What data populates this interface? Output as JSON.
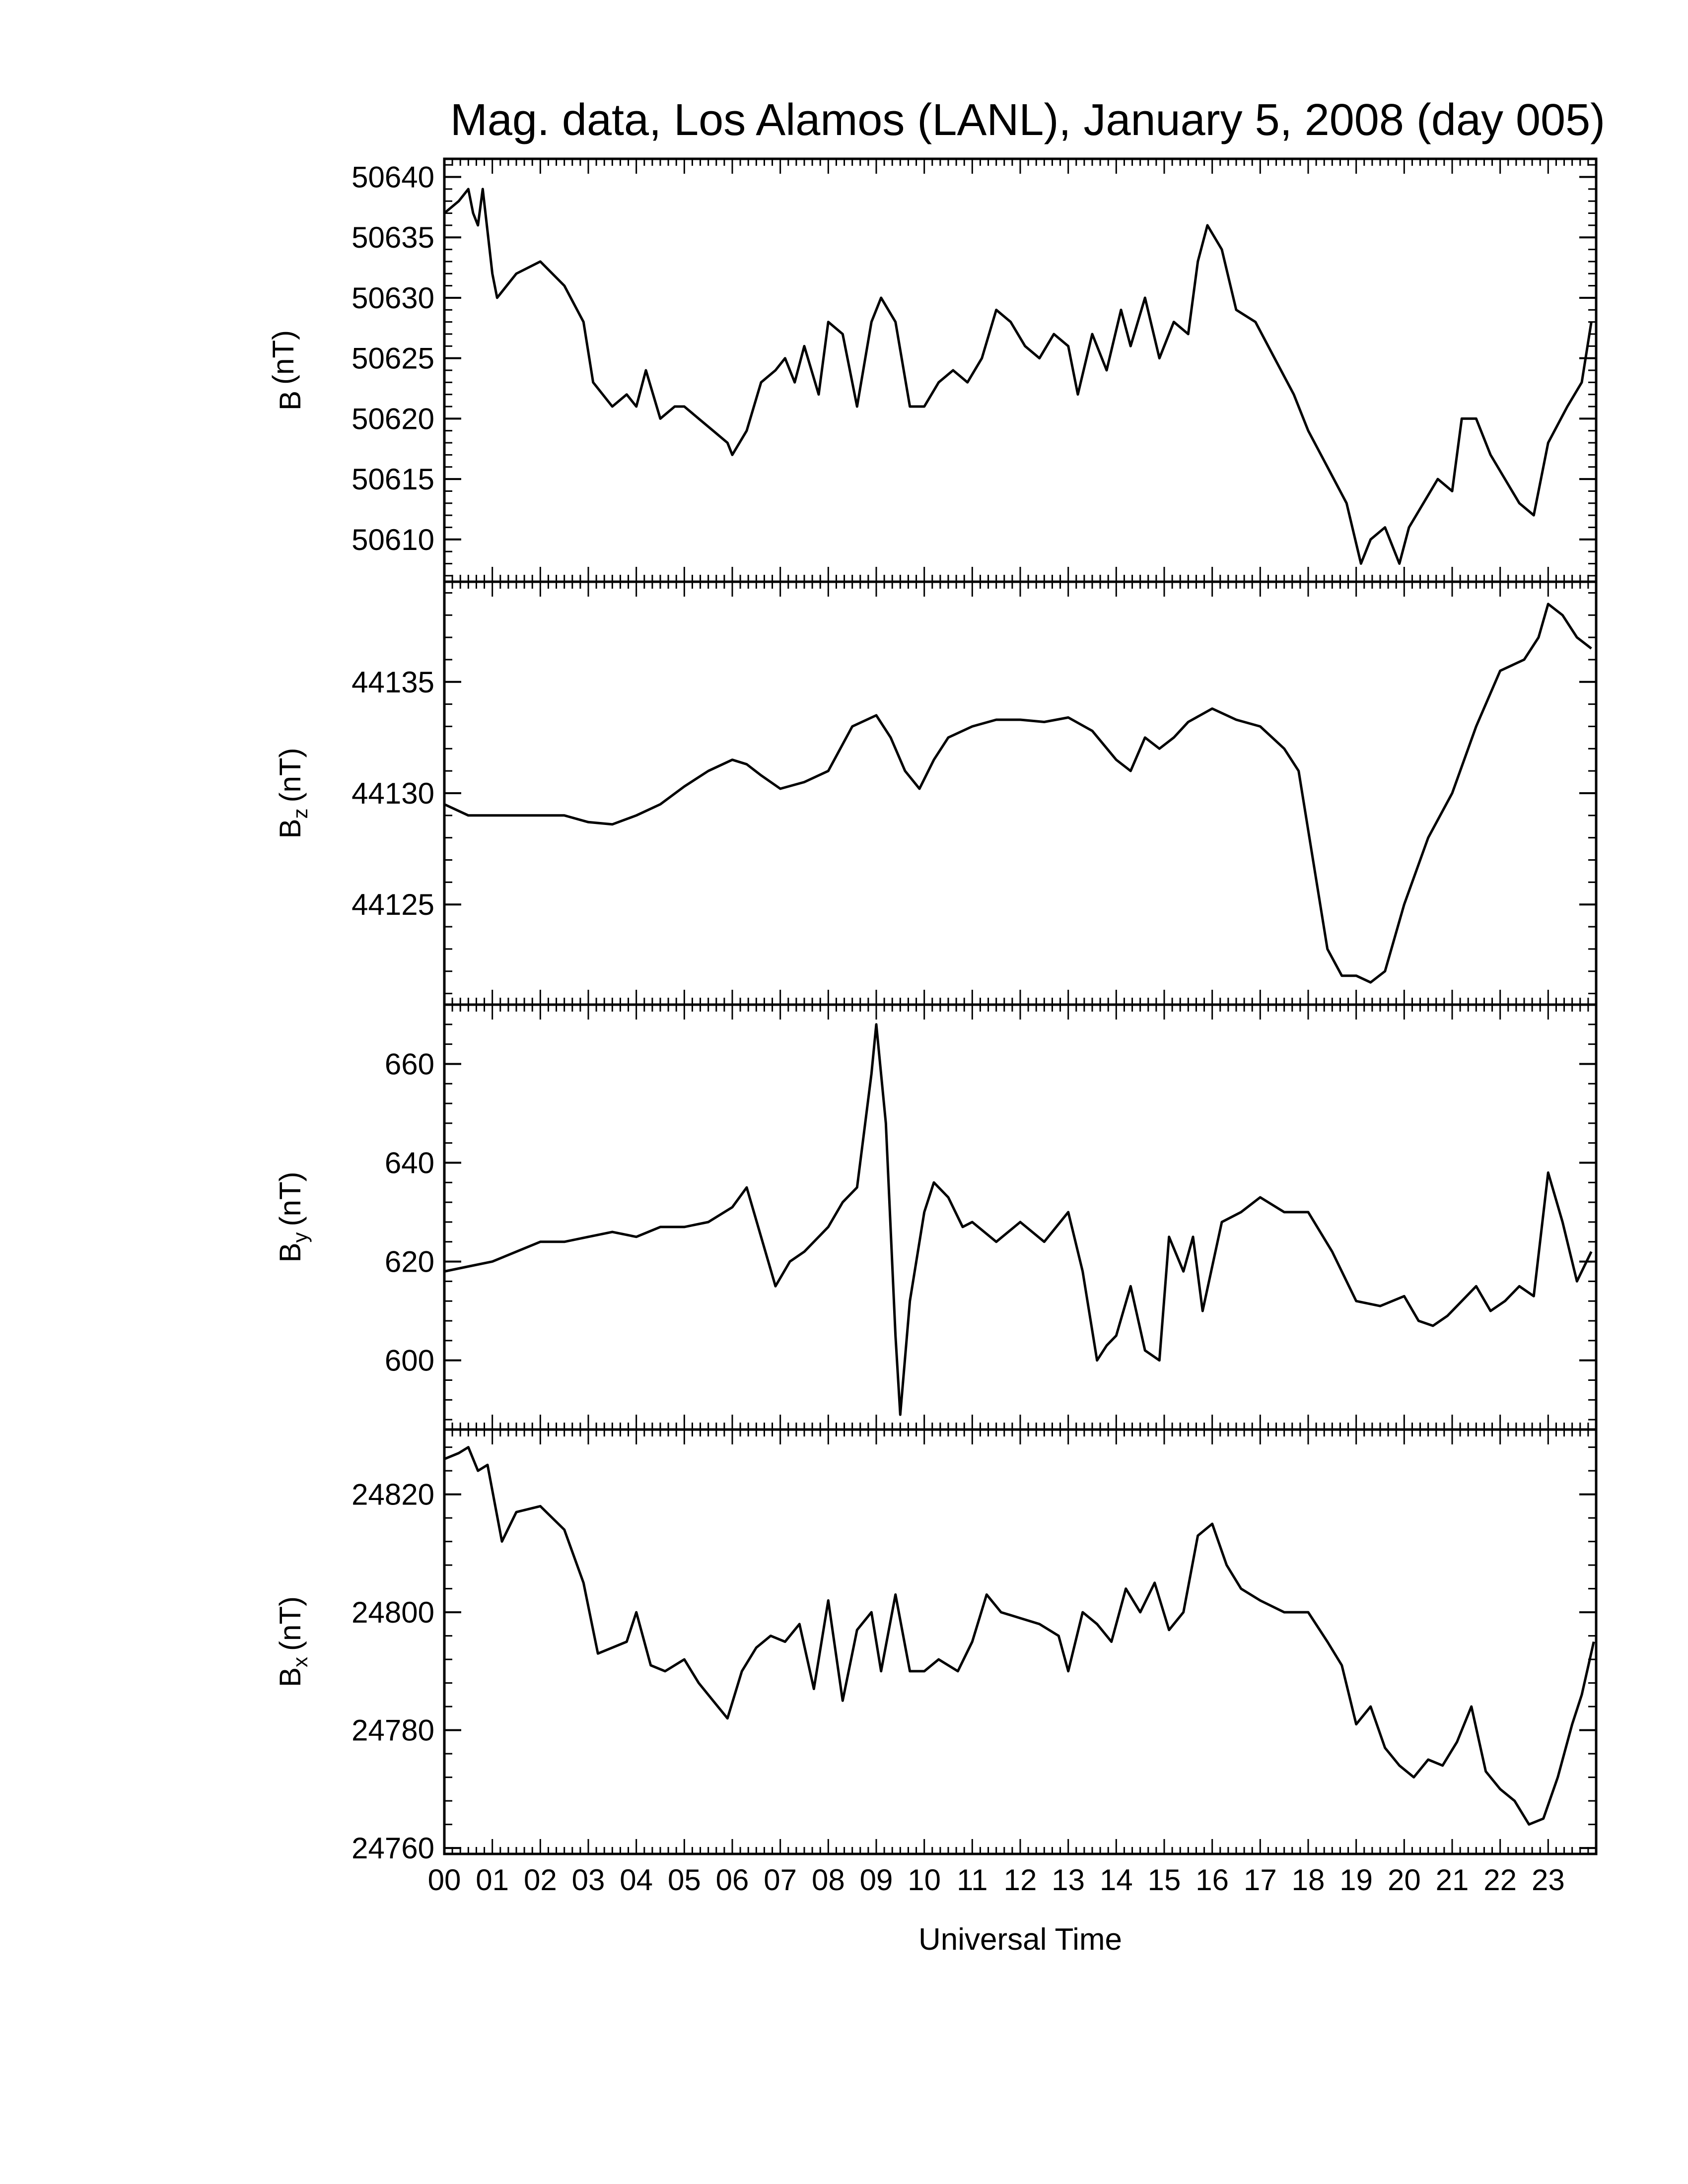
{
  "title": "Mag. data, Los Alamos (LANL), January 5, 2008 (day 005)",
  "xlabel": "Universal Time",
  "hour_labels": [
    "00",
    "01",
    "02",
    "03",
    "04",
    "05",
    "06",
    "07",
    "08",
    "09",
    "10",
    "11",
    "12",
    "13",
    "14",
    "15",
    "16",
    "17",
    "18",
    "19",
    "20",
    "21",
    "22",
    "23"
  ],
  "colors": {
    "line": "#000000",
    "axes": "#000000",
    "background": "#ffffff"
  },
  "chart_data": [
    {
      "type": "line",
      "ylabel_main": "B",
      "ylabel_sub": "",
      "ylabel_unit": "(nT)",
      "xlim": [
        0,
        24
      ],
      "ylim": [
        50606.5,
        50641.5
      ],
      "yticks": [
        50610,
        50615,
        50620,
        50625,
        50630,
        50635,
        50640
      ],
      "ytick_labels": [
        "50610",
        "50615",
        "50620",
        "50625",
        "50630",
        "50635",
        "50640"
      ],
      "x": [
        0.0,
        0.3,
        0.5,
        0.6,
        0.7,
        0.8,
        1.0,
        1.1,
        1.5,
        2.0,
        2.5,
        2.9,
        3.1,
        3.5,
        3.8,
        4.0,
        4.2,
        4.5,
        4.8,
        5.0,
        5.3,
        5.6,
        5.9,
        6.0,
        6.3,
        6.6,
        6.9,
        7.1,
        7.3,
        7.5,
        7.8,
        8.0,
        8.3,
        8.6,
        8.9,
        9.1,
        9.4,
        9.7,
        10.0,
        10.3,
        10.6,
        10.9,
        11.2,
        11.5,
        11.8,
        12.1,
        12.4,
        12.7,
        13.0,
        13.2,
        13.5,
        13.8,
        14.1,
        14.3,
        14.6,
        14.9,
        15.2,
        15.5,
        15.7,
        15.9,
        16.2,
        16.5,
        16.9,
        17.3,
        17.7,
        18.0,
        18.4,
        18.8,
        19.1,
        19.3,
        19.6,
        19.9,
        20.1,
        20.4,
        20.7,
        21.0,
        21.2,
        21.5,
        21.8,
        22.1,
        22.4,
        22.7,
        23.0,
        23.4,
        23.7,
        23.9
      ],
      "y": [
        50637,
        50638,
        50639,
        50637,
        50636,
        50639,
        50632,
        50630,
        50632,
        50633,
        50631,
        50628,
        50623,
        50621,
        50622,
        50621,
        50624,
        50620,
        50621,
        50621,
        50620,
        50619,
        50618,
        50617,
        50619,
        50623,
        50624,
        50625,
        50623,
        50626,
        50622,
        50628,
        50627,
        50621,
        50628,
        50630,
        50628,
        50621,
        50621,
        50623,
        50624,
        50623,
        50625,
        50629,
        50628,
        50626,
        50625,
        50627,
        50626,
        50622,
        50627,
        50624,
        50629,
        50626,
        50630,
        50625,
        50628,
        50627,
        50633,
        50636,
        50634,
        50629,
        50628,
        50625,
        50622,
        50619,
        50616,
        50613,
        50608,
        50610,
        50611,
        50608,
        50611,
        50613,
        50615,
        50614,
        50620,
        50620,
        50617,
        50615,
        50613,
        50612,
        50618,
        50621,
        50623,
        50628
      ]
    },
    {
      "type": "line",
      "ylabel_main": "B",
      "ylabel_sub": "z",
      "ylabel_unit": "(nT)",
      "xlim": [
        0,
        24
      ],
      "ylim": [
        44120.5,
        44139.5
      ],
      "yticks": [
        44125,
        44130,
        44135
      ],
      "ytick_labels": [
        "44125",
        "44130",
        "44135"
      ],
      "x": [
        0.0,
        0.5,
        1.0,
        1.5,
        2.0,
        2.5,
        3.0,
        3.5,
        4.0,
        4.5,
        5.0,
        5.5,
        6.0,
        6.3,
        6.6,
        7.0,
        7.5,
        8.0,
        8.5,
        9.0,
        9.3,
        9.6,
        9.9,
        10.2,
        10.5,
        11.0,
        11.5,
        12.0,
        12.5,
        13.0,
        13.5,
        14.0,
        14.3,
        14.6,
        14.9,
        15.2,
        15.5,
        16.0,
        16.5,
        17.0,
        17.5,
        17.8,
        18.1,
        18.4,
        18.7,
        19.0,
        19.3,
        19.6,
        20.0,
        20.5,
        21.0,
        21.5,
        22.0,
        22.5,
        22.8,
        23.0,
        23.3,
        23.6,
        23.9
      ],
      "y": [
        44129.5,
        44129,
        44129,
        44129,
        44129,
        44129,
        44128.7,
        44128.6,
        44129,
        44129.5,
        44130.3,
        44131,
        44131.5,
        44131.3,
        44130.8,
        44130.2,
        44130.5,
        44131,
        44133,
        44133.5,
        44132.5,
        44131,
        44130.2,
        44131.5,
        44132.5,
        44133,
        44133.3,
        44133.3,
        44133.2,
        44133.4,
        44132.8,
        44131.5,
        44131,
        44132.5,
        44132,
        44132.5,
        44133.2,
        44133.8,
        44133.3,
        44133,
        44132,
        44131,
        44127,
        44123,
        44121.8,
        44121.8,
        44121.5,
        44122,
        44125,
        44128,
        44130,
        44133,
        44135.5,
        44136,
        44137,
        44138.5,
        44138,
        44137,
        44136.5
      ]
    },
    {
      "type": "line",
      "ylabel_main": "B",
      "ylabel_sub": "y",
      "ylabel_unit": "(nT)",
      "xlim": [
        0,
        24
      ],
      "ylim": [
        586,
        672
      ],
      "yticks": [
        600,
        620,
        640,
        660
      ],
      "ytick_labels": [
        "600",
        "620",
        "640",
        "660"
      ],
      "x": [
        0.0,
        0.5,
        1.0,
        1.5,
        2.0,
        2.5,
        3.0,
        3.5,
        4.0,
        4.5,
        5.0,
        5.5,
        6.0,
        6.3,
        6.6,
        6.9,
        7.2,
        7.5,
        8.0,
        8.3,
        8.6,
        8.9,
        9.0,
        9.2,
        9.4,
        9.5,
        9.7,
        10.0,
        10.2,
        10.5,
        10.8,
        11.0,
        11.5,
        12.0,
        12.5,
        13.0,
        13.3,
        13.6,
        13.8,
        14.0,
        14.3,
        14.6,
        14.9,
        15.1,
        15.4,
        15.6,
        15.8,
        16.2,
        16.6,
        17.0,
        17.5,
        18.0,
        18.5,
        19.0,
        19.5,
        20.0,
        20.3,
        20.6,
        20.9,
        21.2,
        21.5,
        21.8,
        22.1,
        22.4,
        22.7,
        23.0,
        23.3,
        23.6,
        23.9
      ],
      "y": [
        618,
        619,
        620,
        622,
        624,
        624,
        625,
        626,
        625,
        627,
        627,
        628,
        631,
        635,
        625,
        615,
        620,
        622,
        627,
        632,
        635,
        658,
        668,
        648,
        605,
        589,
        612,
        630,
        636,
        633,
        627,
        628,
        624,
        628,
        624,
        630,
        618,
        600,
        603,
        605,
        615,
        602,
        600,
        625,
        618,
        625,
        610,
        628,
        630,
        633,
        630,
        630,
        622,
        612,
        611,
        613,
        608,
        607,
        609,
        612,
        615,
        610,
        612,
        615,
        613,
        638,
        628,
        616,
        622
      ]
    },
    {
      "type": "line",
      "ylabel_main": "B",
      "ylabel_sub": "x",
      "ylabel_unit": "(nT)",
      "xlim": [
        0,
        24
      ],
      "ylim": [
        24759,
        24831
      ],
      "yticks": [
        24760,
        24780,
        24800,
        24820
      ],
      "ytick_labels": [
        "24760",
        "24780",
        "24800",
        "24820"
      ],
      "x": [
        0.0,
        0.3,
        0.5,
        0.7,
        0.9,
        1.2,
        1.5,
        2.0,
        2.5,
        2.9,
        3.2,
        3.5,
        3.8,
        4.0,
        4.3,
        4.6,
        4.8,
        5.0,
        5.3,
        5.6,
        5.9,
        6.2,
        6.5,
        6.8,
        7.1,
        7.4,
        7.7,
        8.0,
        8.3,
        8.6,
        8.9,
        9.1,
        9.4,
        9.7,
        10.0,
        10.3,
        10.7,
        11.0,
        11.3,
        11.6,
        12.0,
        12.4,
        12.8,
        13.0,
        13.3,
        13.6,
        13.9,
        14.2,
        14.5,
        14.8,
        15.1,
        15.4,
        15.7,
        16.0,
        16.3,
        16.6,
        17.0,
        17.5,
        18.0,
        18.4,
        18.7,
        19.0,
        19.3,
        19.6,
        19.9,
        20.2,
        20.5,
        20.8,
        21.1,
        21.4,
        21.7,
        22.0,
        22.3,
        22.6,
        22.9,
        23.2,
        23.5,
        23.7,
        23.95
      ],
      "y": [
        24826,
        24827,
        24828,
        24824,
        24825,
        24812,
        24817,
        24818,
        24814,
        24805,
        24793,
        24794,
        24795,
        24800,
        24791,
        24790,
        24791,
        24792,
        24788,
        24785,
        24782,
        24790,
        24794,
        24796,
        24795,
        24798,
        24787,
        24802,
        24785,
        24797,
        24800,
        24790,
        24803,
        24790,
        24790,
        24792,
        24790,
        24795,
        24803,
        24800,
        24799,
        24798,
        24796,
        24790,
        24800,
        24798,
        24795,
        24804,
        24800,
        24805,
        24797,
        24800,
        24813,
        24815,
        24808,
        24804,
        24802,
        24800,
        24800,
        24795,
        24791,
        24781,
        24784,
        24777,
        24774,
        24772,
        24775,
        24774,
        24778,
        24784,
        24773,
        24770,
        24768,
        24764,
        24765,
        24772,
        24781,
        24786,
        24795
      ]
    }
  ]
}
